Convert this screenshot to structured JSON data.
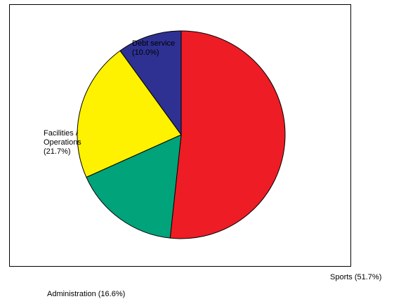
{
  "chart_data": {
    "type": "pie",
    "title": "",
    "grid": false,
    "slices": [
      {
        "label": "Sports (51.7%)",
        "value": 51.7,
        "color": "#ee1c25"
      },
      {
        "label": "Administration (16.6%)",
        "value": 16.6,
        "color": "#00a37a"
      },
      {
        "label": "Facilities /\nOperations\n(21.7%)",
        "value": 21.7,
        "color": "#fff200"
      },
      {
        "label": "Debt service\n(10.0%)",
        "value": 10.0,
        "color": "#2e3192"
      }
    ]
  }
}
